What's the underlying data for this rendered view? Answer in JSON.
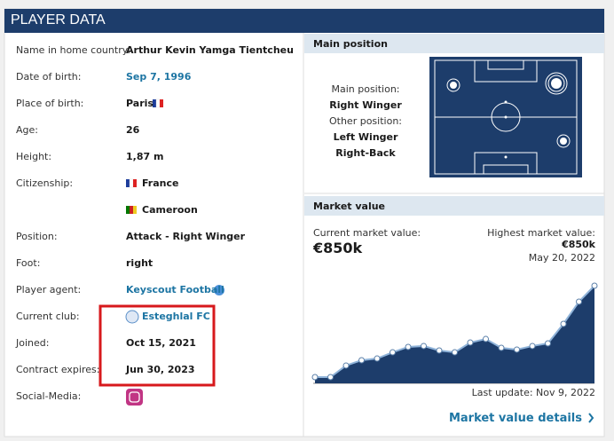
{
  "header": {
    "title": "PLAYER DATA"
  },
  "player_data": {
    "rows": [
      {
        "label": "Name in home country:",
        "values": [
          "Arthur Kevin Yamga Tientcheu"
        ]
      },
      {
        "label": "Date of birth:",
        "values": [
          "Sep 7, 1996"
        ]
      },
      {
        "label": "Place of birth:",
        "values": [
          "Paris"
        ]
      },
      {
        "label": "Age:",
        "values": [
          "26"
        ]
      },
      {
        "label": "Height:",
        "values": [
          "1,87 m"
        ]
      },
      {
        "label": "Citizenship:",
        "values": [
          "France",
          "Cameroon"
        ]
      },
      {
        "label": "Position:",
        "values": [
          "Attack - Right Winger"
        ]
      },
      {
        "label": "Foot:",
        "values": [
          "right"
        ]
      },
      {
        "label": "Player agent:",
        "values": [
          "Keyscout Football"
        ]
      },
      {
        "label": "Current club:",
        "values": [
          "Esteghlal FC"
        ]
      },
      {
        "label": "Joined:",
        "values": [
          "Oct 15, 2021"
        ]
      },
      {
        "label": "Contract expires:",
        "values": [
          "Jun 30, 2023"
        ]
      },
      {
        "label": "Social-Media:",
        "values": []
      }
    ]
  },
  "main_position": {
    "title": "Main position",
    "main_label": "Main position:",
    "main": "Right Winger",
    "other_label": "Other position:",
    "other": [
      "Left Winger",
      "Right-Back"
    ]
  },
  "market_value": {
    "title": "Market value",
    "current_label": "Current market value:",
    "current": "€850k",
    "highest_label": "Highest market value:",
    "highest": "€850k",
    "highest_date": "May 20, 2022",
    "chart": {
      "type": "area",
      "color": "#1d3d6b",
      "values": [
        54,
        54,
        155,
        201,
        216,
        270,
        317,
        325,
        286,
        270,
        355,
        386,
        309,
        294,
        325,
        348,
        518,
        711,
        850
      ]
    },
    "last_update": "Last update: Nov 9, 2022",
    "link": "Market value details"
  }
}
